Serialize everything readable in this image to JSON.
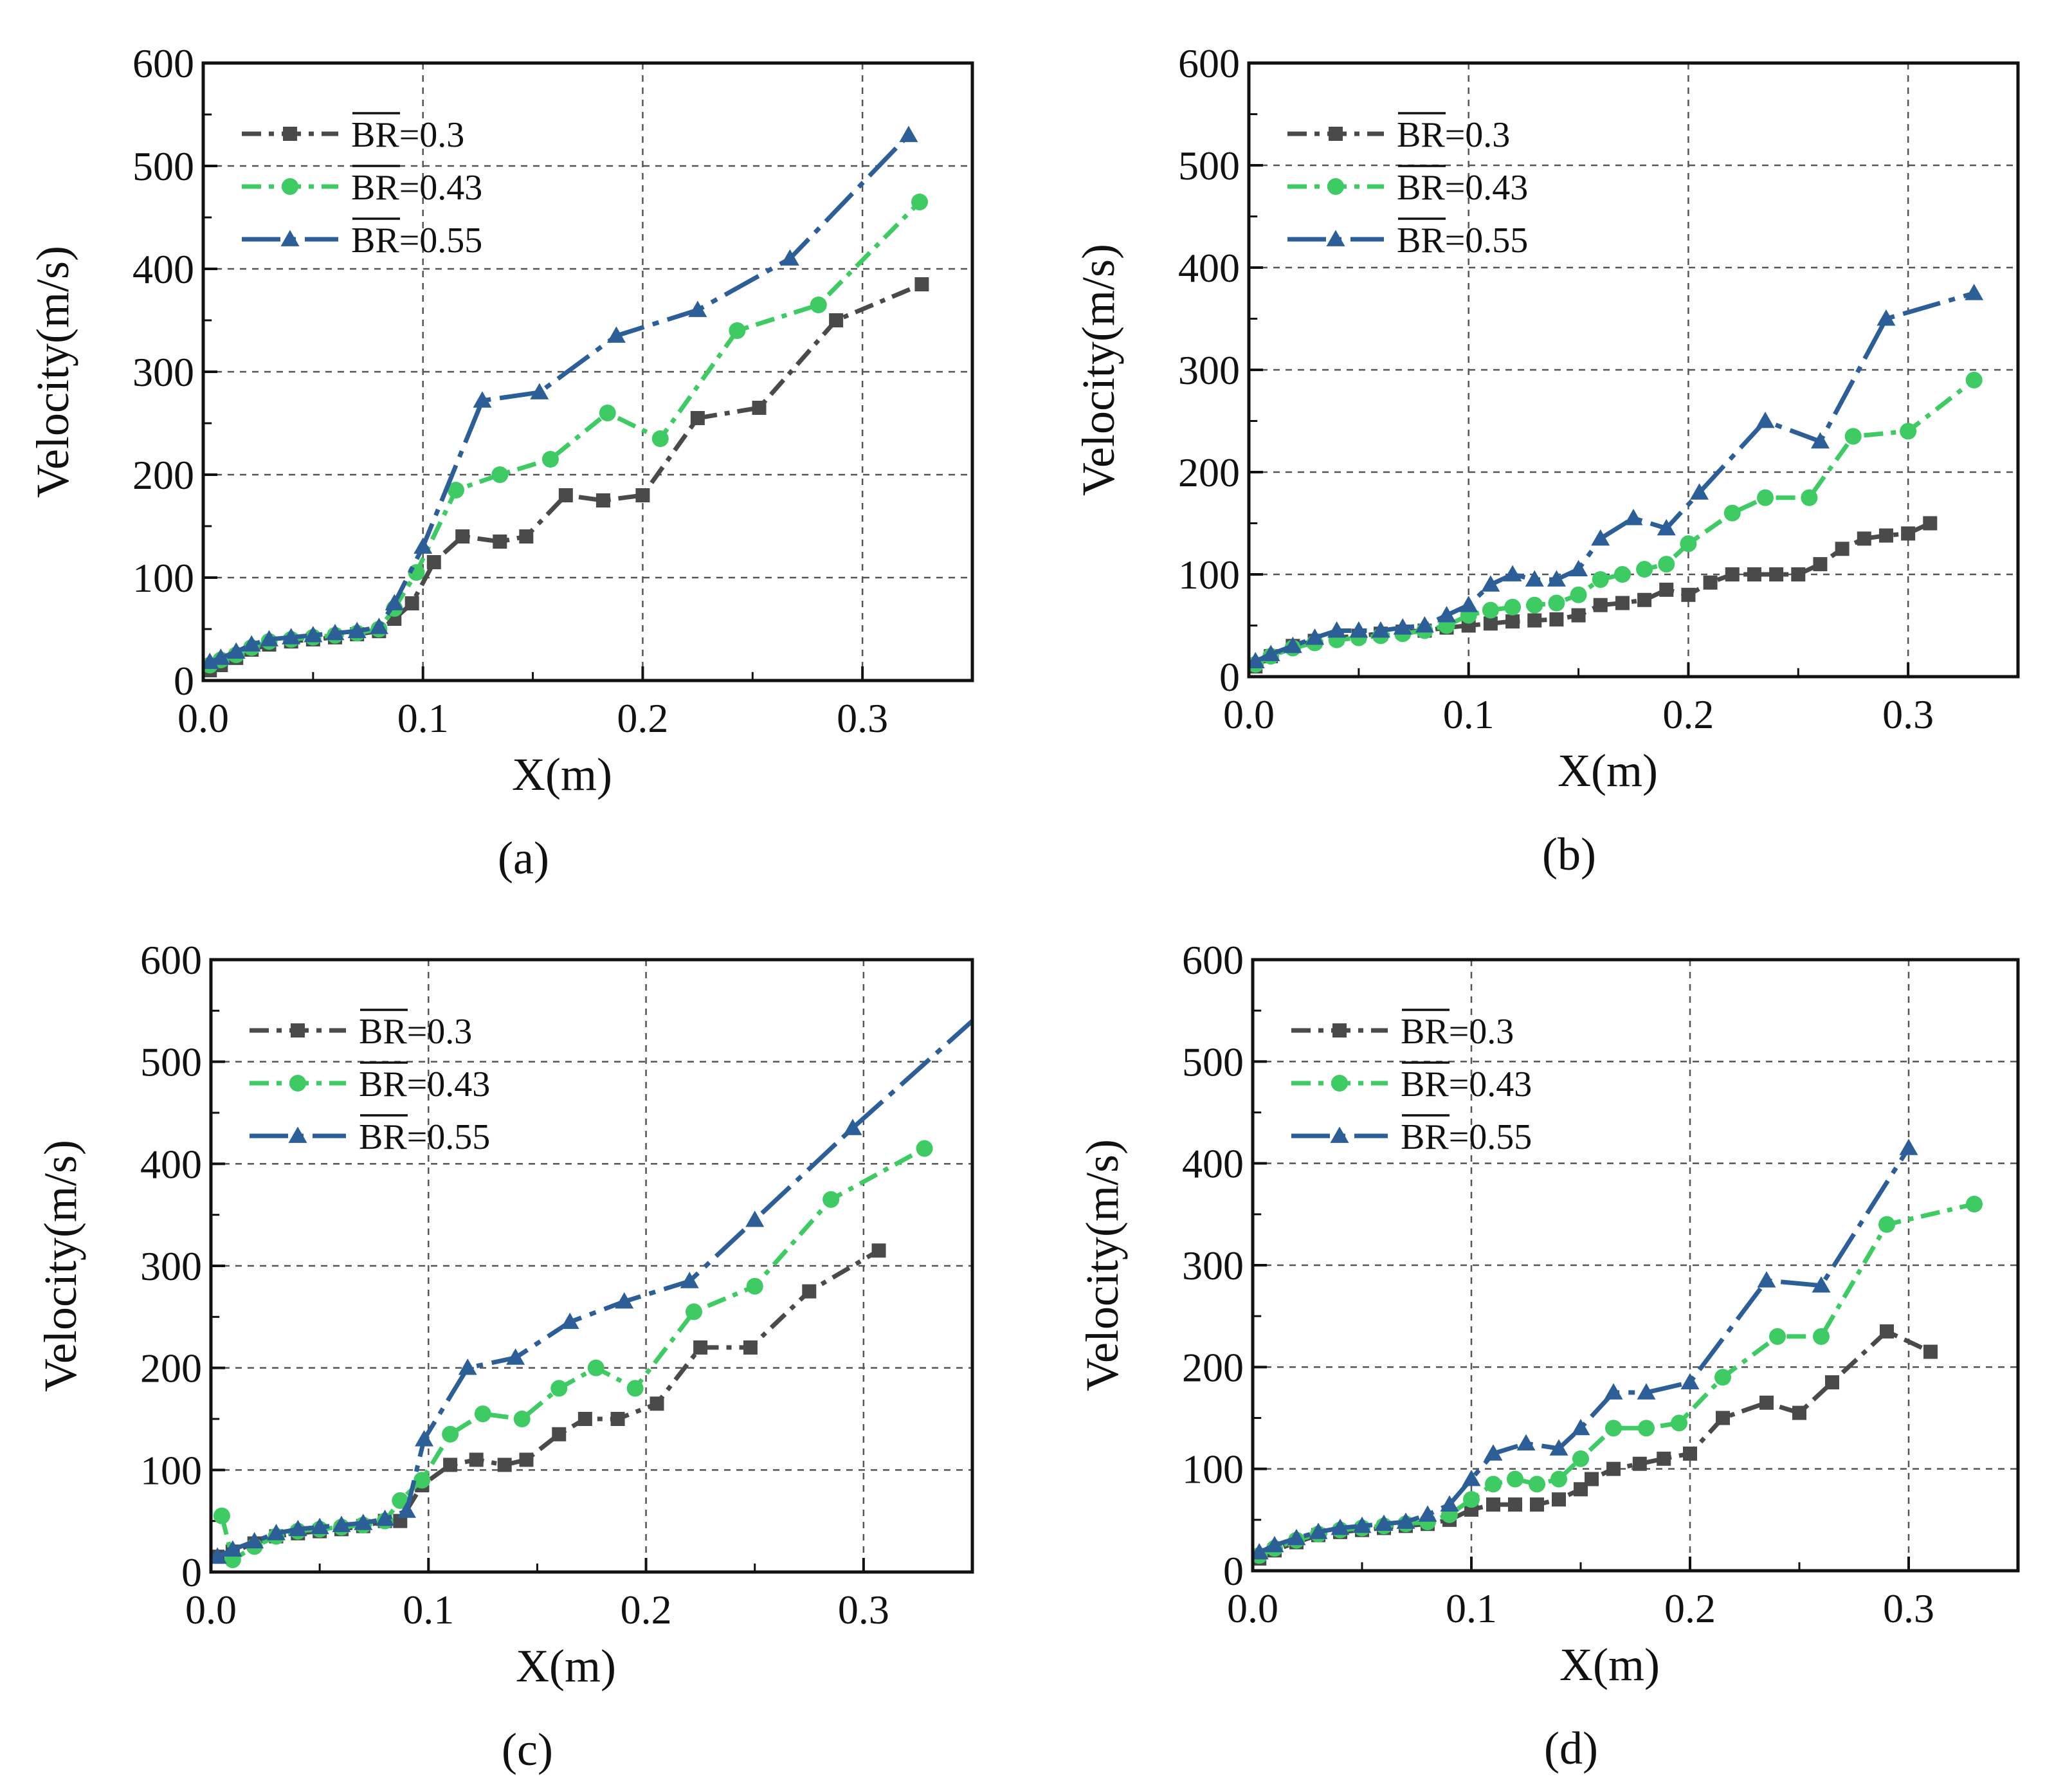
{
  "figure": {
    "legend_prefix": "BR",
    "legend_items": [
      {
        "label": "=0.3",
        "color": "#4a4a4a",
        "marker": "square"
      },
      {
        "label": "=0.43",
        "color": "#3ecb63",
        "marker": "circle"
      },
      {
        "label": "=0.55",
        "color": "#2c5f97",
        "marker": "triangle"
      }
    ]
  },
  "chart_data": [
    {
      "type": "line",
      "panel_label": "(a)",
      "xlabel": "X(m)",
      "ylabel": "Velocity(m/s)",
      "xlim": [
        0,
        0.35
      ],
      "ylim": [
        0,
        600
      ],
      "xticks": [
        "0.0",
        "0.1",
        "0.2",
        "0.3"
      ],
      "yticks": [
        "0",
        "100",
        "200",
        "300",
        "400",
        "500",
        "600"
      ],
      "grid": true,
      "legend_position": "top-left",
      "series": [
        {
          "name": "BR=0.3",
          "x": [
            0.003,
            0.008,
            0.015,
            0.022,
            0.03,
            0.04,
            0.05,
            0.06,
            0.07,
            0.08,
            0.087,
            0.095,
            0.105,
            0.118,
            0.135,
            0.147,
            0.165,
            0.182,
            0.2,
            0.225,
            0.253,
            0.288,
            0.327
          ],
          "y": [
            10,
            15,
            22,
            30,
            35,
            38,
            40,
            42,
            45,
            48,
            60,
            75,
            115,
            140,
            135,
            140,
            180,
            175,
            180,
            255,
            265,
            350,
            385
          ]
        },
        {
          "name": "BR=0.43",
          "x": [
            0.003,
            0.008,
            0.015,
            0.022,
            0.03,
            0.04,
            0.05,
            0.06,
            0.07,
            0.08,
            0.087,
            0.097,
            0.115,
            0.135,
            0.158,
            0.184,
            0.208,
            0.243,
            0.28,
            0.326
          ],
          "y": [
            15,
            20,
            25,
            32,
            38,
            40,
            42,
            44,
            46,
            50,
            70,
            105,
            185,
            200,
            215,
            260,
            235,
            340,
            365,
            465
          ]
        },
        {
          "name": "BR=0.55",
          "x": [
            0.003,
            0.008,
            0.015,
            0.022,
            0.03,
            0.04,
            0.05,
            0.06,
            0.07,
            0.08,
            0.087,
            0.1,
            0.127,
            0.153,
            0.188,
            0.225,
            0.267,
            0.321
          ],
          "y": [
            18,
            22,
            28,
            35,
            40,
            42,
            44,
            46,
            48,
            52,
            75,
            130,
            272,
            280,
            335,
            360,
            410,
            530
          ]
        }
      ]
    },
    {
      "type": "line",
      "panel_label": "(b)",
      "xlabel": "X(m)",
      "ylabel": "Velocity(m/s)",
      "xlim": [
        0,
        0.35
      ],
      "ylim": [
        0,
        600
      ],
      "xticks": [
        "0.0",
        "0.1",
        "0.2",
        "0.3"
      ],
      "yticks": [
        "0",
        "100",
        "200",
        "300",
        "400",
        "500",
        "600"
      ],
      "grid": true,
      "legend_position": "top-left",
      "series": [
        {
          "name": "BR=0.3",
          "x": [
            0.003,
            0.01,
            0.02,
            0.03,
            0.04,
            0.05,
            0.06,
            0.07,
            0.08,
            0.09,
            0.1,
            0.11,
            0.12,
            0.13,
            0.14,
            0.15,
            0.16,
            0.17,
            0.18,
            0.19,
            0.2,
            0.21,
            0.22,
            0.23,
            0.24,
            0.25,
            0.26,
            0.27,
            0.28,
            0.29,
            0.3,
            0.31
          ],
          "y": [
            10,
            20,
            30,
            35,
            38,
            40,
            42,
            44,
            45,
            48,
            50,
            52,
            54,
            55,
            56,
            60,
            70,
            72,
            75,
            85,
            80,
            92,
            100,
            100,
            100,
            100,
            110,
            125,
            135,
            138,
            140,
            150
          ]
        },
        {
          "name": "BR=0.43",
          "x": [
            0.003,
            0.01,
            0.02,
            0.03,
            0.04,
            0.05,
            0.06,
            0.07,
            0.08,
            0.09,
            0.1,
            0.11,
            0.12,
            0.13,
            0.14,
            0.15,
            0.16,
            0.17,
            0.18,
            0.19,
            0.2,
            0.22,
            0.235,
            0.255,
            0.275,
            0.3,
            0.33
          ],
          "y": [
            12,
            20,
            28,
            33,
            36,
            38,
            40,
            42,
            45,
            50,
            60,
            65,
            68,
            70,
            72,
            80,
            95,
            100,
            105,
            110,
            130,
            160,
            175,
            175,
            235,
            240,
            290
          ]
        },
        {
          "name": "BR=0.55",
          "x": [
            0.003,
            0.01,
            0.02,
            0.03,
            0.04,
            0.05,
            0.06,
            0.07,
            0.08,
            0.09,
            0.1,
            0.11,
            0.12,
            0.13,
            0.14,
            0.15,
            0.16,
            0.175,
            0.19,
            0.205,
            0.235,
            0.26,
            0.29,
            0.33
          ],
          "y": [
            15,
            22,
            30,
            38,
            45,
            45,
            45,
            48,
            50,
            60,
            70,
            90,
            100,
            95,
            95,
            105,
            135,
            155,
            145,
            180,
            250,
            230,
            350,
            375
          ]
        }
      ]
    },
    {
      "type": "line",
      "panel_label": "(c)",
      "xlabel": "X(m)",
      "ylabel": "Velocity(m/s)",
      "xlim": [
        0,
        0.35
      ],
      "ylim": [
        0,
        600
      ],
      "xticks": [
        "0.0",
        "0.1",
        "0.2",
        "0.3"
      ],
      "yticks": [
        "0",
        "100",
        "200",
        "300",
        "400",
        "500",
        "600"
      ],
      "grid": true,
      "legend_position": "top-left",
      "series": [
        {
          "name": "BR=0.3",
          "x": [
            0.003,
            0.01,
            0.02,
            0.03,
            0.04,
            0.05,
            0.06,
            0.07,
            0.08,
            0.087,
            0.097,
            0.11,
            0.122,
            0.135,
            0.145,
            0.16,
            0.172,
            0.187,
            0.205,
            0.225,
            0.248,
            0.275,
            0.307
          ],
          "y": [
            15,
            20,
            28,
            35,
            38,
            40,
            42,
            45,
            50,
            50,
            85,
            105,
            110,
            105,
            110,
            135,
            150,
            150,
            165,
            220,
            220,
            275,
            315
          ]
        },
        {
          "name": "BR=0.43",
          "x": [
            0.005,
            0.01,
            0.02,
            0.03,
            0.04,
            0.05,
            0.06,
            0.07,
            0.08,
            0.087,
            0.097,
            0.11,
            0.125,
            0.143,
            0.16,
            0.177,
            0.195,
            0.222,
            0.25,
            0.285,
            0.328
          ],
          "y": [
            55,
            12,
            25,
            35,
            40,
            42,
            44,
            46,
            50,
            70,
            90,
            135,
            155,
            150,
            180,
            200,
            180,
            255,
            280,
            365,
            415
          ]
        },
        {
          "name": "BR=0.55",
          "x": [
            0.003,
            0.01,
            0.02,
            0.03,
            0.04,
            0.05,
            0.06,
            0.07,
            0.08,
            0.09,
            0.098,
            0.118,
            0.14,
            0.165,
            0.19,
            0.22,
            0.25,
            0.295,
            0.35
          ],
          "y": [
            15,
            22,
            30,
            38,
            42,
            44,
            46,
            48,
            52,
            60,
            130,
            200,
            210,
            245,
            265,
            285,
            345,
            435,
            540
          ]
        }
      ]
    },
    {
      "type": "line",
      "panel_label": "(d)",
      "xlabel": "X(m)",
      "ylabel": "Velocity(m/s)",
      "xlim": [
        0,
        0.35
      ],
      "ylim": [
        0,
        600
      ],
      "xticks": [
        "0.0",
        "0.1",
        "0.2",
        "0.3"
      ],
      "yticks": [
        "0",
        "100",
        "200",
        "300",
        "400",
        "500",
        "600"
      ],
      "grid": true,
      "legend_position": "top-left",
      "series": [
        {
          "name": "BR=0.3",
          "x": [
            0.003,
            0.01,
            0.02,
            0.03,
            0.04,
            0.05,
            0.06,
            0.07,
            0.08,
            0.09,
            0.1,
            0.11,
            0.12,
            0.13,
            0.14,
            0.15,
            0.155,
            0.165,
            0.177,
            0.188,
            0.2,
            0.215,
            0.235,
            0.25,
            0.265,
            0.29,
            0.31
          ],
          "y": [
            12,
            20,
            28,
            35,
            38,
            40,
            42,
            44,
            46,
            50,
            60,
            65,
            65,
            65,
            70,
            80,
            90,
            100,
            105,
            110,
            115,
            150,
            165,
            155,
            185,
            235,
            215
          ]
        },
        {
          "name": "BR=0.43",
          "x": [
            0.003,
            0.01,
            0.02,
            0.03,
            0.04,
            0.05,
            0.06,
            0.07,
            0.08,
            0.09,
            0.1,
            0.11,
            0.12,
            0.13,
            0.14,
            0.15,
            0.165,
            0.18,
            0.195,
            0.215,
            0.24,
            0.26,
            0.29,
            0.33
          ],
          "y": [
            15,
            22,
            30,
            36,
            40,
            42,
            44,
            46,
            48,
            55,
            70,
            85,
            90,
            85,
            90,
            110,
            140,
            140,
            145,
            190,
            230,
            230,
            340,
            360
          ]
        },
        {
          "name": "BR=0.55",
          "x": [
            0.003,
            0.01,
            0.02,
            0.03,
            0.04,
            0.05,
            0.06,
            0.07,
            0.08,
            0.09,
            0.1,
            0.11,
            0.125,
            0.14,
            0.15,
            0.165,
            0.18,
            0.2,
            0.235,
            0.26,
            0.3
          ],
          "y": [
            18,
            25,
            32,
            38,
            42,
            44,
            46,
            48,
            55,
            65,
            90,
            115,
            125,
            120,
            140,
            175,
            175,
            185,
            285,
            280,
            415
          ]
        }
      ]
    }
  ]
}
